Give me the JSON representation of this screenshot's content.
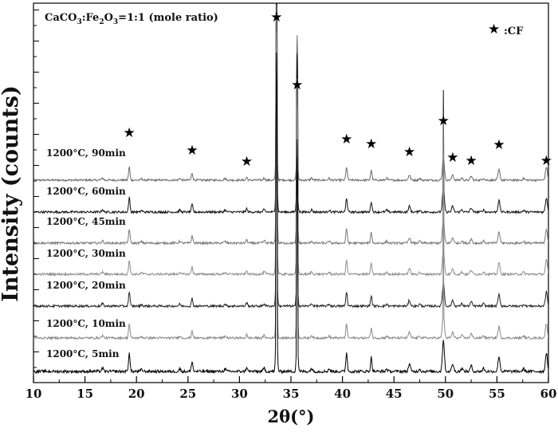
{
  "chart_data": {
    "type": "line",
    "title": "",
    "xlabel": "2θ(°)",
    "ylabel": "Intensity (counts)",
    "xlim": [
      10,
      60
    ],
    "x_ticks": [
      "10",
      "15",
      "20",
      "25",
      "30",
      "35",
      "40",
      "45",
      "50",
      "55",
      "60"
    ],
    "y_ticks": [],
    "annotation": "CaCO3:Fe2O3=1:1 (mole ratio)",
    "legend": {
      "symbol": "★",
      "label": ":CF",
      "placement": "top-right"
    },
    "peak_marker": "★",
    "peaks_2theta": [
      19.3,
      25.4,
      30.7,
      33.6,
      35.6,
      40.4,
      42.8,
      46.5,
      49.8,
      50.7,
      52.5,
      55.2,
      59.8
    ],
    "peak_relative_heights": [
      0.3,
      0.16,
      0.07,
      1.0,
      0.68,
      0.3,
      0.22,
      0.12,
      0.5,
      0.12,
      0.09,
      0.24,
      0.3
    ],
    "series": [
      {
        "name": "1200°C, 90min",
        "color": "#6a6a6a"
      },
      {
        "name": "1200°C, 60min",
        "color": "#111111"
      },
      {
        "name": "1200°C, 45min",
        "color": "#7a7a7a"
      },
      {
        "name": "1200°C, 30min",
        "color": "#8e8e8e"
      },
      {
        "name": "1200°C, 20min",
        "color": "#222222"
      },
      {
        "name": "1200°C, 10min",
        "color": "#8a8a8a"
      },
      {
        "name": "1200°C, 5min",
        "color": "#000000"
      }
    ]
  }
}
